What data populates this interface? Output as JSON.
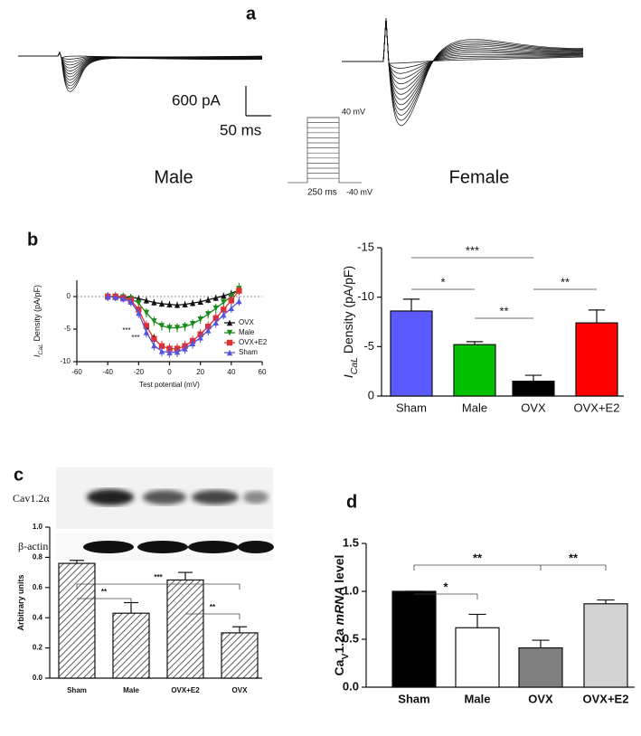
{
  "panel_labels": [
    "a",
    "b",
    "c",
    "d"
  ],
  "panel_a": {
    "scale_current": "600 pA",
    "scale_time": "50 ms",
    "step_top": "40 mV",
    "step_duration": "250 ms",
    "step_bottom": "-40 mV",
    "left_label": "Male",
    "right_label": "Female"
  },
  "panel_c": {
    "gel_labels": [
      "Cav1.2α",
      "β-actin"
    ]
  },
  "chart_data": [
    {
      "type": "line",
      "x": [
        -40,
        -35,
        -30,
        -25,
        -20,
        -15,
        -10,
        -5,
        0,
        5,
        10,
        15,
        20,
        25,
        30,
        35,
        40,
        45
      ],
      "xlim": [
        -60,
        60
      ],
      "xticks": [
        -60,
        -40,
        -20,
        0,
        20,
        40,
        60
      ],
      "ylim": [
        -10,
        2.5
      ],
      "yticks": [
        0,
        -5,
        -10
      ],
      "x_label": "Test potential (mV)",
      "y_label": [
        "I",
        "CaL",
        " Density (pA/pF)"
      ],
      "series": [
        {
          "name": "OVX",
          "color": "#111111",
          "marker": "triangle-up",
          "values": [
            0,
            0,
            0,
            -0.1,
            -0.3,
            -0.6,
            -0.9,
            -1.1,
            -1.2,
            -1.3,
            -1.2,
            -1.0,
            -0.8,
            -0.5,
            -0.2,
            0.1,
            0.5,
            1.0
          ],
          "errors": [
            0.5,
            0.5,
            0.5,
            0.5,
            0.5,
            0.5,
            0.5,
            0.5,
            0.5,
            0.5,
            0.5,
            0.5,
            0.5,
            0.5,
            0.5,
            0.5,
            0.5,
            0.5
          ]
        },
        {
          "name": "Male",
          "color": "#1a8a1a",
          "marker": "triangle-down",
          "values": [
            0,
            0,
            -0.1,
            -0.3,
            -1.0,
            -2.5,
            -3.8,
            -4.5,
            -4.8,
            -4.8,
            -4.6,
            -4.2,
            -3.5,
            -2.7,
            -1.8,
            -0.9,
            0,
            1.2
          ],
          "errors": [
            0.7,
            0.7,
            0.7,
            0.7,
            0.7,
            0.7,
            0.7,
            0.7,
            0.7,
            0.7,
            0.7,
            0.7,
            0.7,
            0.7,
            0.7,
            0.7,
            0.7,
            0.9
          ]
        },
        {
          "name": "OVX+E2",
          "color": "#e03030",
          "marker": "square",
          "values": [
            0,
            0,
            -0.2,
            -0.6,
            -2.0,
            -4.5,
            -6.5,
            -7.6,
            -8.0,
            -8.0,
            -7.6,
            -6.8,
            -5.8,
            -4.6,
            -3.3,
            -2.0,
            -0.6,
            0.9
          ],
          "errors": [
            0.6,
            0.6,
            0.6,
            0.7,
            0.8,
            0.8,
            0.8,
            0.8,
            0.8,
            0.8,
            0.8,
            0.8,
            0.8,
            0.8,
            0.8,
            0.7,
            0.7,
            0.7
          ]
        },
        {
          "name": "Sham",
          "color": "#5555e0",
          "marker": "triangle-up",
          "values": [
            0,
            -0.1,
            -0.3,
            -0.8,
            -2.5,
            -5.5,
            -7.5,
            -8.4,
            -8.6,
            -8.5,
            -8.0,
            -7.2,
            -6.3,
            -5.2,
            -4.0,
            -2.8,
            -1.8,
            -0.7
          ],
          "errors": [
            0.6,
            0.6,
            0.6,
            0.7,
            0.8,
            0.8,
            0.8,
            0.8,
            0.8,
            0.8,
            0.8,
            0.8,
            0.8,
            0.8,
            0.8,
            0.7,
            0.7,
            0.7
          ]
        }
      ],
      "annotations": [
        "***",
        "*",
        "***",
        "*"
      ]
    },
    {
      "type": "bar",
      "categories": [
        "Sham",
        "Male",
        "OVX",
        "OVX+E2"
      ],
      "values": [
        -8.6,
        -5.2,
        -1.5,
        -7.4
      ],
      "errors": [
        1.2,
        0.3,
        0.6,
        1.3
      ],
      "colors": [
        "#5a5aff",
        "#00c000",
        "#000000",
        "#ff0000"
      ],
      "ylim": [
        0,
        -15
      ],
      "yticks": [
        0,
        -5,
        -10,
        -15
      ],
      "y_label": [
        "I",
        "CaL",
        " Density (pA/pF)"
      ],
      "brackets": [
        {
          "between": [
            "Sham",
            "OVX"
          ],
          "text": "***"
        },
        {
          "between": [
            "Sham",
            "Male"
          ],
          "text": "*"
        },
        {
          "between": [
            "Male",
            "OVX"
          ],
          "text": "**"
        },
        {
          "between": [
            "OVX",
            "OVX+E2"
          ],
          "text": "**"
        }
      ]
    },
    {
      "type": "bar",
      "hatch": true,
      "categories": [
        "Sham",
        "Male",
        "OVX+E2",
        "OVX"
      ],
      "values": [
        0.76,
        0.43,
        0.65,
        0.3
      ],
      "errors": [
        0.02,
        0.07,
        0.05,
        0.04
      ],
      "color": "#ffffff",
      "ylim": [
        0,
        1.0
      ],
      "yticks": [
        {
          "value": 0,
          "label": "0.0"
        },
        {
          "value": 0.2,
          "label": "0.2"
        },
        {
          "value": 0.4,
          "label": "0.4"
        },
        {
          "value": 0.6,
          "label": "0.6"
        },
        {
          "value": 0.8,
          "label": "0.8"
        },
        {
          "value": 1.0,
          "label": "1.0"
        }
      ],
      "y_label": [
        "Arbitrary units"
      ],
      "brackets": [
        {
          "between": [
            "Sham",
            "OVX"
          ],
          "text": "***"
        },
        {
          "between": [
            "Sham",
            "Male"
          ],
          "text": "**"
        },
        {
          "between": [
            "OVX+E2",
            "OVX"
          ],
          "text": "**"
        }
      ]
    },
    {
      "type": "bar",
      "categories": [
        "Sham",
        "Male",
        "OVX",
        "OVX+E2"
      ],
      "values": [
        1.0,
        0.62,
        0.41,
        0.87
      ],
      "errors": [
        0,
        0.14,
        0.08,
        0.04
      ],
      "colors": [
        "#000000",
        "#ffffff",
        "#808080",
        "#d3d3d3"
      ],
      "ylim": [
        0,
        1.5
      ],
      "yticks": [
        {
          "value": 0,
          "label": "0.0"
        },
        {
          "value": 0.5,
          "label": "0.5"
        },
        {
          "value": 1.0,
          "label": "1.0"
        },
        {
          "value": 1.5,
          "label": "1.5"
        }
      ],
      "y_label": [
        "Ca",
        "V",
        "1.2a ",
        "mRNA",
        " level"
      ],
      "brackets": [
        {
          "between": [
            "Sham",
            "OVX"
          ],
          "text": "**"
        },
        {
          "between": [
            "Sham",
            "Male"
          ],
          "text": "*"
        },
        {
          "between": [
            "OVX",
            "OVX+E2"
          ],
          "text": "**"
        }
      ]
    }
  ]
}
